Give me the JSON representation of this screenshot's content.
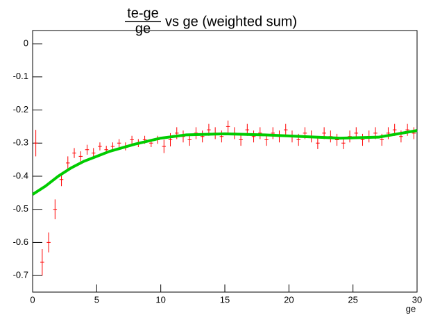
{
  "chart_data": {
    "type": "scatter",
    "title": {
      "numerator": "te-ge",
      "denominator": "ge",
      "text": "vs ge (weighted sum)"
    },
    "x_label": "ge",
    "xlim": [
      0,
      30
    ],
    "xticks": [
      0,
      5,
      10,
      15,
      20,
      25,
      30
    ],
    "ylim": [
      -0.75,
      0.04
    ],
    "yticks": [
      0,
      -0.1,
      -0.2,
      -0.3,
      -0.4,
      -0.5,
      -0.6,
      -0.7
    ],
    "points": {
      "color": "#ff0000",
      "x": [
        0.25,
        0.75,
        1.25,
        1.75,
        2.25,
        2.75,
        3.25,
        3.75,
        4.25,
        4.75,
        5.25,
        5.75,
        6.25,
        6.75,
        7.25,
        7.75,
        8.25,
        8.75,
        9.25,
        9.75,
        10.25,
        10.75,
        11.25,
        11.75,
        12.25,
        12.75,
        13.25,
        13.75,
        14.25,
        14.75,
        15.25,
        15.75,
        16.25,
        16.75,
        17.25,
        17.75,
        18.25,
        18.75,
        19.25,
        19.75,
        20.25,
        20.75,
        21.25,
        21.75,
        22.25,
        22.75,
        23.25,
        23.75,
        24.25,
        24.75,
        25.25,
        25.75,
        26.25,
        26.75,
        27.25,
        27.75,
        28.25,
        28.75,
        29.25,
        29.75
      ],
      "values": [
        -0.3,
        -0.66,
        -0.6,
        -0.5,
        -0.41,
        -0.36,
        -0.33,
        -0.34,
        -0.32,
        -0.33,
        -0.31,
        -0.32,
        -0.31,
        -0.3,
        -0.31,
        -0.29,
        -0.3,
        -0.29,
        -0.3,
        -0.29,
        -0.31,
        -0.29,
        -0.27,
        -0.28,
        -0.29,
        -0.27,
        -0.28,
        -0.26,
        -0.27,
        -0.28,
        -0.25,
        -0.27,
        -0.29,
        -0.26,
        -0.28,
        -0.27,
        -0.29,
        -0.27,
        -0.28,
        -0.26,
        -0.28,
        -0.29,
        -0.27,
        -0.28,
        -0.3,
        -0.27,
        -0.28,
        -0.29,
        -0.3,
        -0.28,
        -0.27,
        -0.29,
        -0.28,
        -0.27,
        -0.29,
        -0.27,
        -0.26,
        -0.28,
        -0.26,
        -0.27
      ],
      "errors": [
        0.04,
        0.04,
        0.03,
        0.03,
        0.02,
        0.02,
        0.015,
        0.015,
        0.015,
        0.015,
        0.012,
        0.012,
        0.012,
        0.012,
        0.012,
        0.012,
        0.012,
        0.012,
        0.012,
        0.012,
        0.02,
        0.02,
        0.018,
        0.018,
        0.018,
        0.018,
        0.018,
        0.018,
        0.018,
        0.018,
        0.018,
        0.018,
        0.018,
        0.018,
        0.018,
        0.018,
        0.018,
        0.018,
        0.018,
        0.018,
        0.018,
        0.018,
        0.018,
        0.018,
        0.018,
        0.018,
        0.018,
        0.018,
        0.018,
        0.018,
        0.018,
        0.018,
        0.018,
        0.018,
        0.018,
        0.018,
        0.018,
        0.018,
        0.018,
        0.018
      ]
    },
    "fit": {
      "color": "#00cc00",
      "x": [
        0,
        1,
        2,
        3,
        4,
        5,
        6,
        8,
        10,
        12,
        15,
        18,
        21,
        24,
        27,
        30
      ],
      "values": [
        -0.455,
        -0.43,
        -0.4,
        -0.375,
        -0.355,
        -0.34,
        -0.325,
        -0.303,
        -0.285,
        -0.275,
        -0.272,
        -0.275,
        -0.28,
        -0.285,
        -0.282,
        -0.262
      ]
    }
  }
}
